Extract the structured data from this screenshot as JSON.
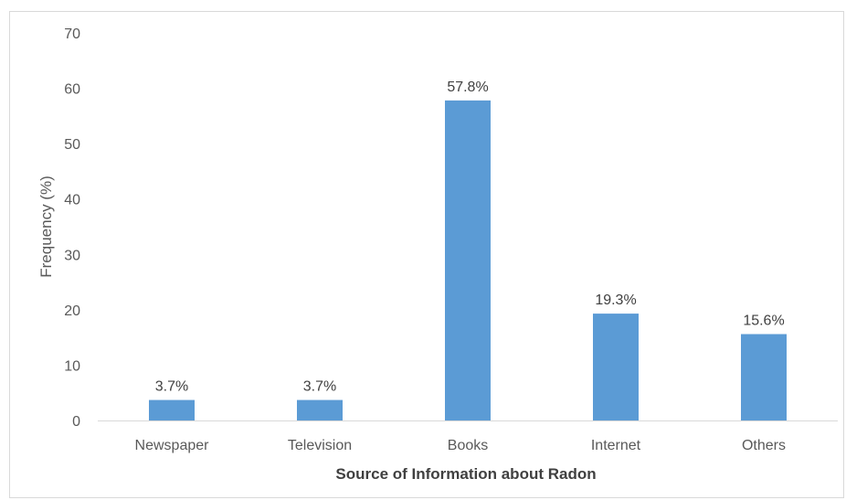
{
  "chart_data": {
    "type": "bar",
    "categories": [
      "Newspaper",
      "Television",
      "Books",
      "Internet",
      "Others"
    ],
    "values": [
      3.7,
      3.7,
      57.8,
      19.3,
      15.6
    ],
    "data_labels": [
      "3.7%",
      "3.7%",
      "57.8%",
      "19.3%",
      "15.6%"
    ],
    "title": "",
    "xlabel": "Source of Information about Radon",
    "ylabel": "Frequency (%)",
    "ylim": [
      0,
      70
    ],
    "yticks": [
      "0",
      "10",
      "20",
      "30",
      "40",
      "50",
      "60",
      "70"
    ],
    "grid": false,
    "legend": "none",
    "bar_color": "#5b9bd5"
  }
}
